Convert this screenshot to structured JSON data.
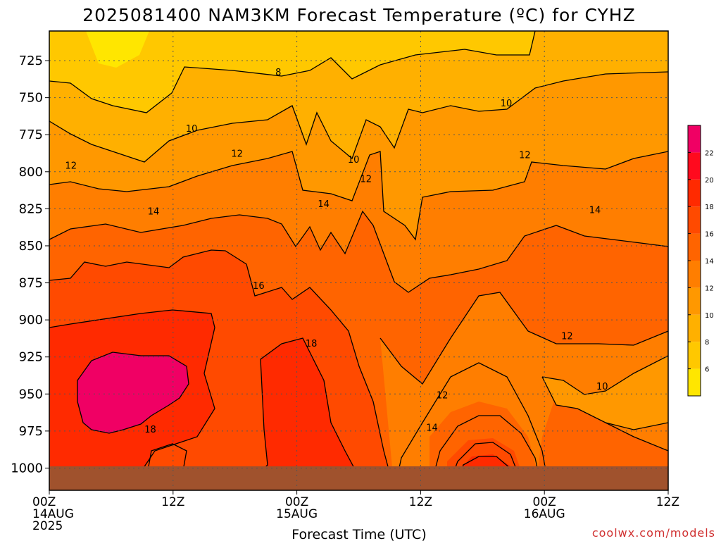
{
  "chart_data": {
    "type": "heatmap",
    "title": "2025081400 NAM3KM Forecast Temperature (ºC) for CYHZ",
    "xlabel": "Forecast Time (UTC)",
    "ylabel": "",
    "x_range_hours": [
      0,
      60
    ],
    "y_range_hPa": [
      1015,
      705
    ],
    "y_scale": "reversed",
    "yticks": [
      "725",
      "750",
      "775",
      "800",
      "825",
      "850",
      "875",
      "900",
      "925",
      "950",
      "975",
      "1000"
    ],
    "ytick_values": [
      725,
      750,
      775,
      800,
      825,
      850,
      875,
      900,
      925,
      950,
      975,
      1000
    ],
    "xticks": [
      {
        "hour": 0,
        "lines": [
          "00Z",
          "14AUG",
          "2025"
        ]
      },
      {
        "hour": 12,
        "lines": [
          "12Z"
        ]
      },
      {
        "hour": 24,
        "lines": [
          "00Z",
          "15AUG"
        ]
      },
      {
        "hour": 36,
        "lines": [
          "12Z"
        ]
      },
      {
        "hour": 48,
        "lines": [
          "00Z",
          "16AUG"
        ]
      },
      {
        "hour": 60,
        "lines": [
          "12Z"
        ]
      }
    ],
    "grid": true,
    "legend": "right colorbar",
    "colorbar_labels": [
      "6",
      "8",
      "10",
      "12",
      "14",
      "16",
      "18",
      "20",
      "22"
    ],
    "colorbar_colors": [
      "#ffe600",
      "#ffc800",
      "#ffb000",
      "#ff9800",
      "#ff7e00",
      "#ff6400",
      "#ff4a00",
      "#ff2a00",
      "#ff0a1e",
      "#f00064"
    ],
    "contour_labels": [
      {
        "text": "8",
        "hour": 22.2,
        "p": 733
      },
      {
        "text": "10",
        "hour": 13.8,
        "p": 771
      },
      {
        "text": "10",
        "hour": 29.5,
        "p": 792
      },
      {
        "text": "10",
        "hour": 44.3,
        "p": 754
      },
      {
        "text": "10",
        "hour": 53.6,
        "p": 945
      },
      {
        "text": "12",
        "hour": 2.1,
        "p": 796
      },
      {
        "text": "12",
        "hour": 18.2,
        "p": 788
      },
      {
        "text": "12",
        "hour": 30.7,
        "p": 805
      },
      {
        "text": "12",
        "hour": 46.1,
        "p": 789
      },
      {
        "text": "12",
        "hour": 50.2,
        "p": 911
      },
      {
        "text": "12",
        "hour": 38.1,
        "p": 951
      },
      {
        "text": "14",
        "hour": 10.1,
        "p": 827
      },
      {
        "text": "14",
        "hour": 26.6,
        "p": 822
      },
      {
        "text": "14",
        "hour": 52.9,
        "p": 826
      },
      {
        "text": "14",
        "hour": 37.1,
        "p": 973
      },
      {
        "text": "16",
        "hour": 20.3,
        "p": 877
      },
      {
        "text": "18",
        "hour": 25.4,
        "p": 916
      },
      {
        "text": "18",
        "hour": 9.8,
        "p": 974
      }
    ]
  },
  "credit": "coolwx.com/models"
}
